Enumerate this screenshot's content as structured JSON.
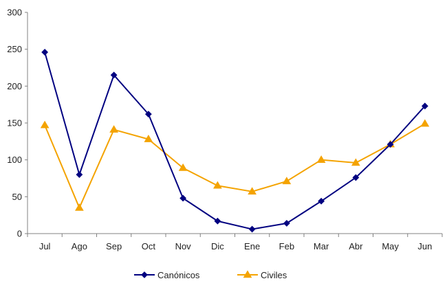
{
  "chart_data": {
    "type": "line",
    "categories": [
      "Jul",
      "Ago",
      "Sep",
      "Oct",
      "Nov",
      "Dic",
      "Ene",
      "Feb",
      "Mar",
      "Abr",
      "May",
      "Jun"
    ],
    "series": [
      {
        "name": "Canónicos",
        "color": "#000080",
        "marker": "diamond",
        "values": [
          246,
          80,
          215,
          162,
          48,
          17,
          6,
          14,
          44,
          76,
          121,
          173
        ]
      },
      {
        "name": "Civiles",
        "color": "#F4A300",
        "marker": "triangle",
        "values": [
          147,
          35,
          141,
          128,
          89,
          65,
          57,
          71,
          100,
          96,
          121,
          149
        ]
      }
    ],
    "y_ticks": [
      "0",
      "50",
      "100",
      "150",
      "200",
      "250",
      "300"
    ],
    "ylim": [
      0,
      300
    ],
    "grid": false,
    "legend_position": "bottom"
  }
}
